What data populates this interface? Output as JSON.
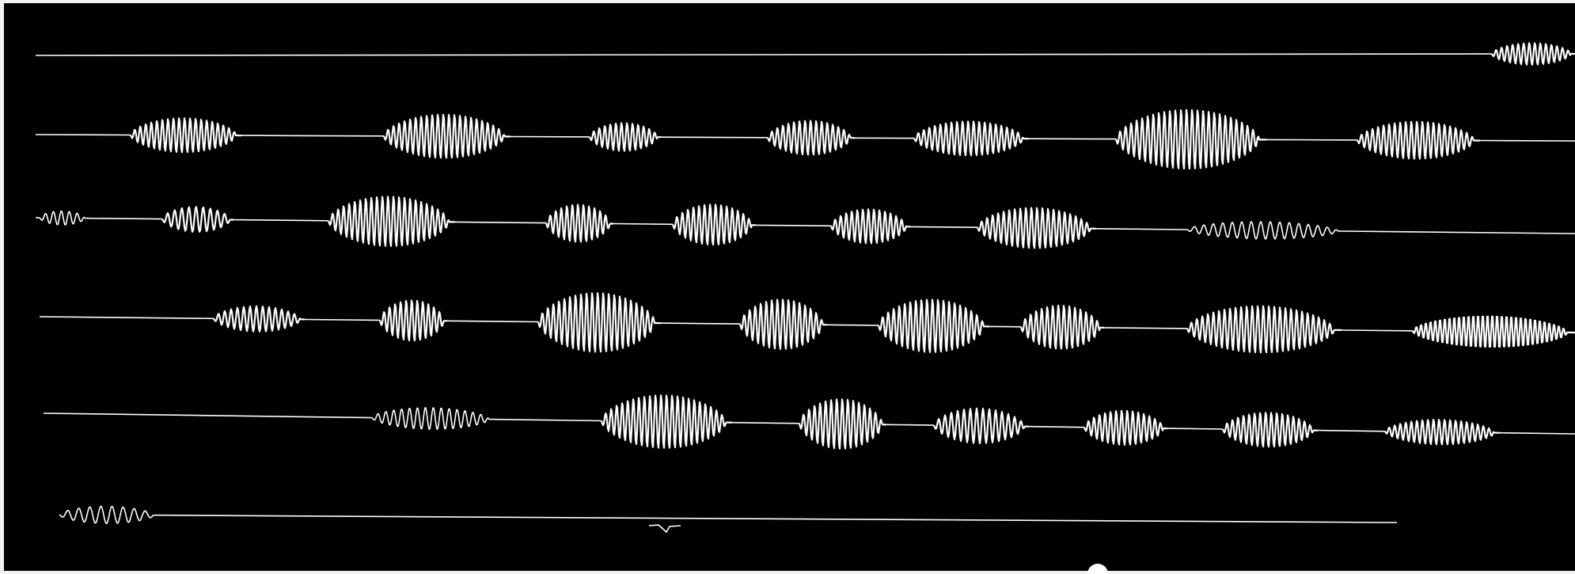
{
  "recording": {
    "kind": "oscillogram-photograph",
    "background_color": "#000000",
    "trace_color": "#ffffff",
    "trace_count": 6,
    "traces": [
      {
        "name": "trace-1",
        "bursts": 1
      },
      {
        "name": "trace-2",
        "bursts": 7
      },
      {
        "name": "trace-3",
        "bursts": 8
      },
      {
        "name": "trace-4",
        "bursts": 8
      },
      {
        "name": "trace-5",
        "bursts": 7
      },
      {
        "name": "trace-6",
        "bursts": 1
      }
    ]
  }
}
